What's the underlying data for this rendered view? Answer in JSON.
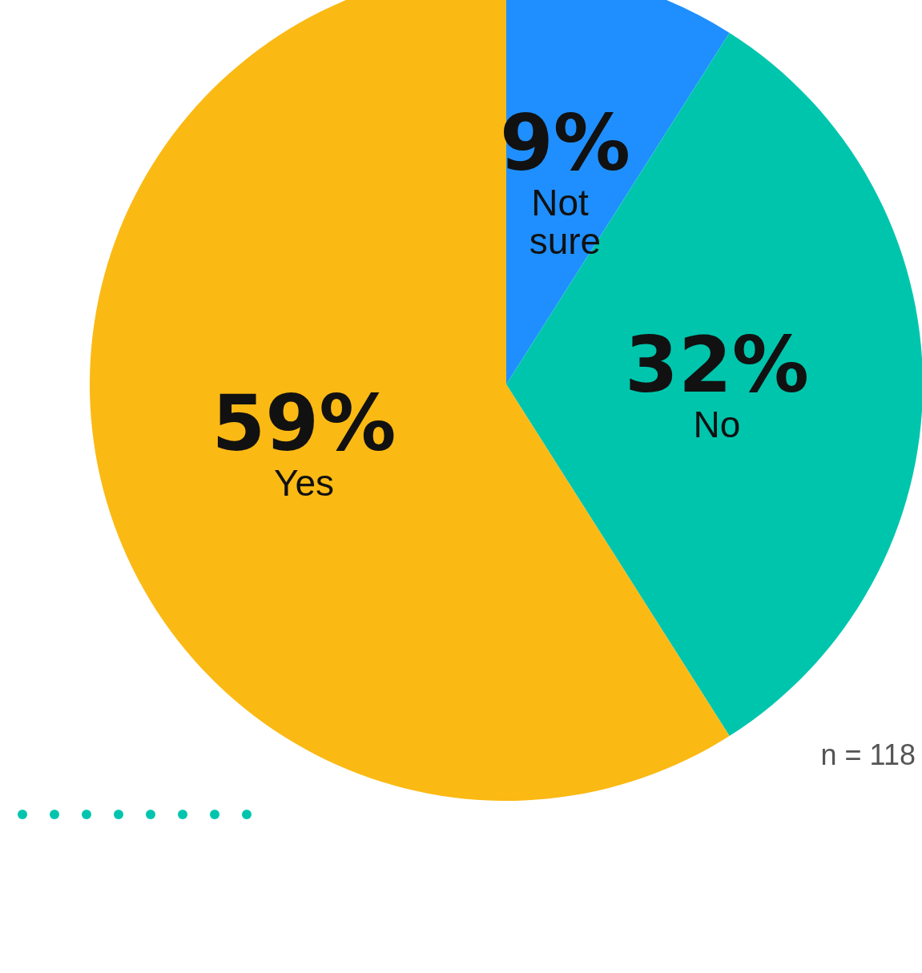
{
  "chart_data": {
    "type": "pie",
    "categories": [
      "Not sure",
      "No",
      "Yes"
    ],
    "values": [
      9,
      32,
      59
    ],
    "value_labels": [
      "9%",
      "32%",
      "59%"
    ],
    "colors": [
      "#1f8fff",
      "#00c5ad",
      "#fbb914"
    ],
    "legend": false,
    "annotations": [
      "n = 118"
    ]
  }
}
